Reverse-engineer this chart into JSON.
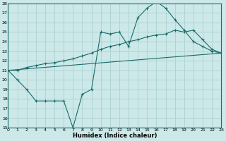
{
  "xlabel": "Humidex (Indice chaleur)",
  "background_color": "#cce8e8",
  "grid_color": "#b0d4d4",
  "line_color": "#1a6b6b",
  "xlim": [
    0,
    23
  ],
  "ylim": [
    15,
    28
  ],
  "xticks": [
    0,
    1,
    2,
    3,
    4,
    5,
    6,
    7,
    8,
    9,
    10,
    11,
    12,
    13,
    14,
    15,
    16,
    17,
    18,
    19,
    20,
    21,
    22,
    23
  ],
  "yticks": [
    15,
    16,
    17,
    18,
    19,
    20,
    21,
    22,
    23,
    24,
    25,
    26,
    27,
    28
  ],
  "line1_x": [
    0,
    1,
    2,
    3,
    4,
    5,
    6,
    7,
    8,
    9,
    10,
    11,
    12,
    13,
    14,
    15,
    16,
    17,
    18,
    19,
    20,
    21,
    22,
    23
  ],
  "line1_y": [
    21.0,
    20.0,
    19.0,
    17.8,
    17.8,
    17.8,
    17.8,
    15.0,
    18.5,
    19.0,
    25.0,
    24.8,
    25.0,
    23.5,
    26.5,
    27.5,
    28.2,
    27.5,
    26.3,
    25.2,
    24.0,
    23.5,
    23.0,
    22.8
  ],
  "line2_x": [
    0,
    23
  ],
  "line2_y": [
    21.0,
    22.8
  ],
  "line3_x": [
    0,
    1,
    2,
    3,
    4,
    5,
    6,
    7,
    8,
    9,
    10,
    11,
    12,
    13,
    14,
    15,
    16,
    17,
    18,
    19,
    20,
    21,
    22,
    23
  ],
  "line3_y": [
    21.0,
    21.0,
    21.3,
    21.5,
    21.7,
    21.8,
    22.0,
    22.2,
    22.5,
    22.8,
    23.2,
    23.5,
    23.7,
    24.0,
    24.2,
    24.5,
    24.7,
    24.8,
    25.2,
    25.0,
    25.2,
    24.2,
    23.2,
    22.8
  ]
}
